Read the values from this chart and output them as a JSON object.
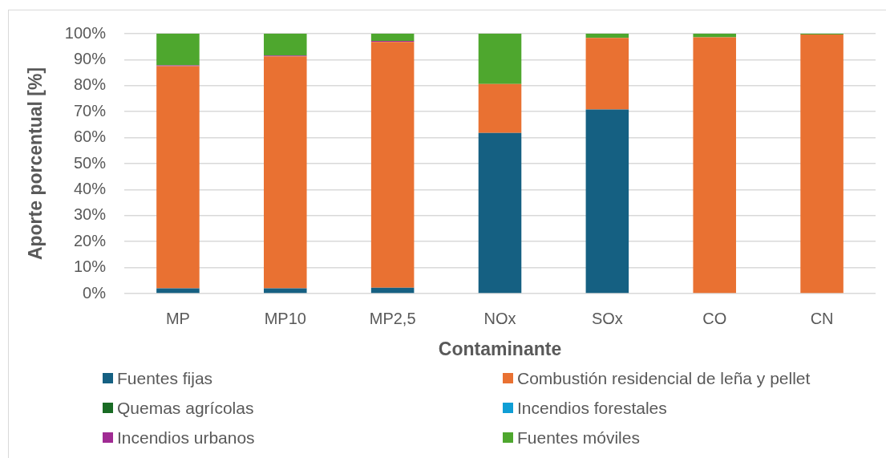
{
  "chart_data": {
    "type": "bar",
    "stacked": true,
    "xlabel": "Contaminante",
    "ylabel": "Aporte porcentual [%]",
    "categories": [
      "MP",
      "MP10",
      "MP2,5",
      "NOx",
      "SOx",
      "CO",
      "CN"
    ],
    "series": [
      {
        "name": "Fuentes fijas",
        "color": "#156082",
        "values": [
          2,
          2,
          2.2,
          61.8,
          70.8,
          0,
          0
        ]
      },
      {
        "name": "Combustión residencial de leña y pellet",
        "color": "#e97132",
        "values": [
          85.5,
          89.3,
          94.6,
          18.8,
          27.6,
          98.6,
          99.7
        ]
      },
      {
        "name": "Quemas agrícolas",
        "color": "#196b24",
        "values": [
          0,
          0,
          0,
          0,
          0,
          0,
          0
        ]
      },
      {
        "name": "Incendios forestales",
        "color": "#0f9ed5",
        "values": [
          0,
          0,
          0,
          0,
          0,
          0,
          0
        ]
      },
      {
        "name": "Incendios urbanos",
        "color": "#a02b93",
        "values": [
          0.3,
          0.3,
          0.4,
          0,
          0,
          0,
          0
        ]
      },
      {
        "name": "Fuentes móviles",
        "color": "#4ea72e",
        "values": [
          12.2,
          8.4,
          2.8,
          19.4,
          1.6,
          1.4,
          0.3
        ]
      }
    ],
    "ylim": [
      0,
      100
    ],
    "yticks": [
      {
        "value": 0,
        "label": "0%"
      },
      {
        "value": 10,
        "label": "10%"
      },
      {
        "value": 20,
        "label": "20%"
      },
      {
        "value": 30,
        "label": "30%"
      },
      {
        "value": 40,
        "label": "40%"
      },
      {
        "value": 50,
        "label": "50%"
      },
      {
        "value": 60,
        "label": "60%"
      },
      {
        "value": 70,
        "label": "70%"
      },
      {
        "value": 80,
        "label": "80%"
      },
      {
        "value": 90,
        "label": "90%"
      },
      {
        "value": 100,
        "label": "100%"
      }
    ],
    "grid": "y",
    "legend": "bottom"
  }
}
